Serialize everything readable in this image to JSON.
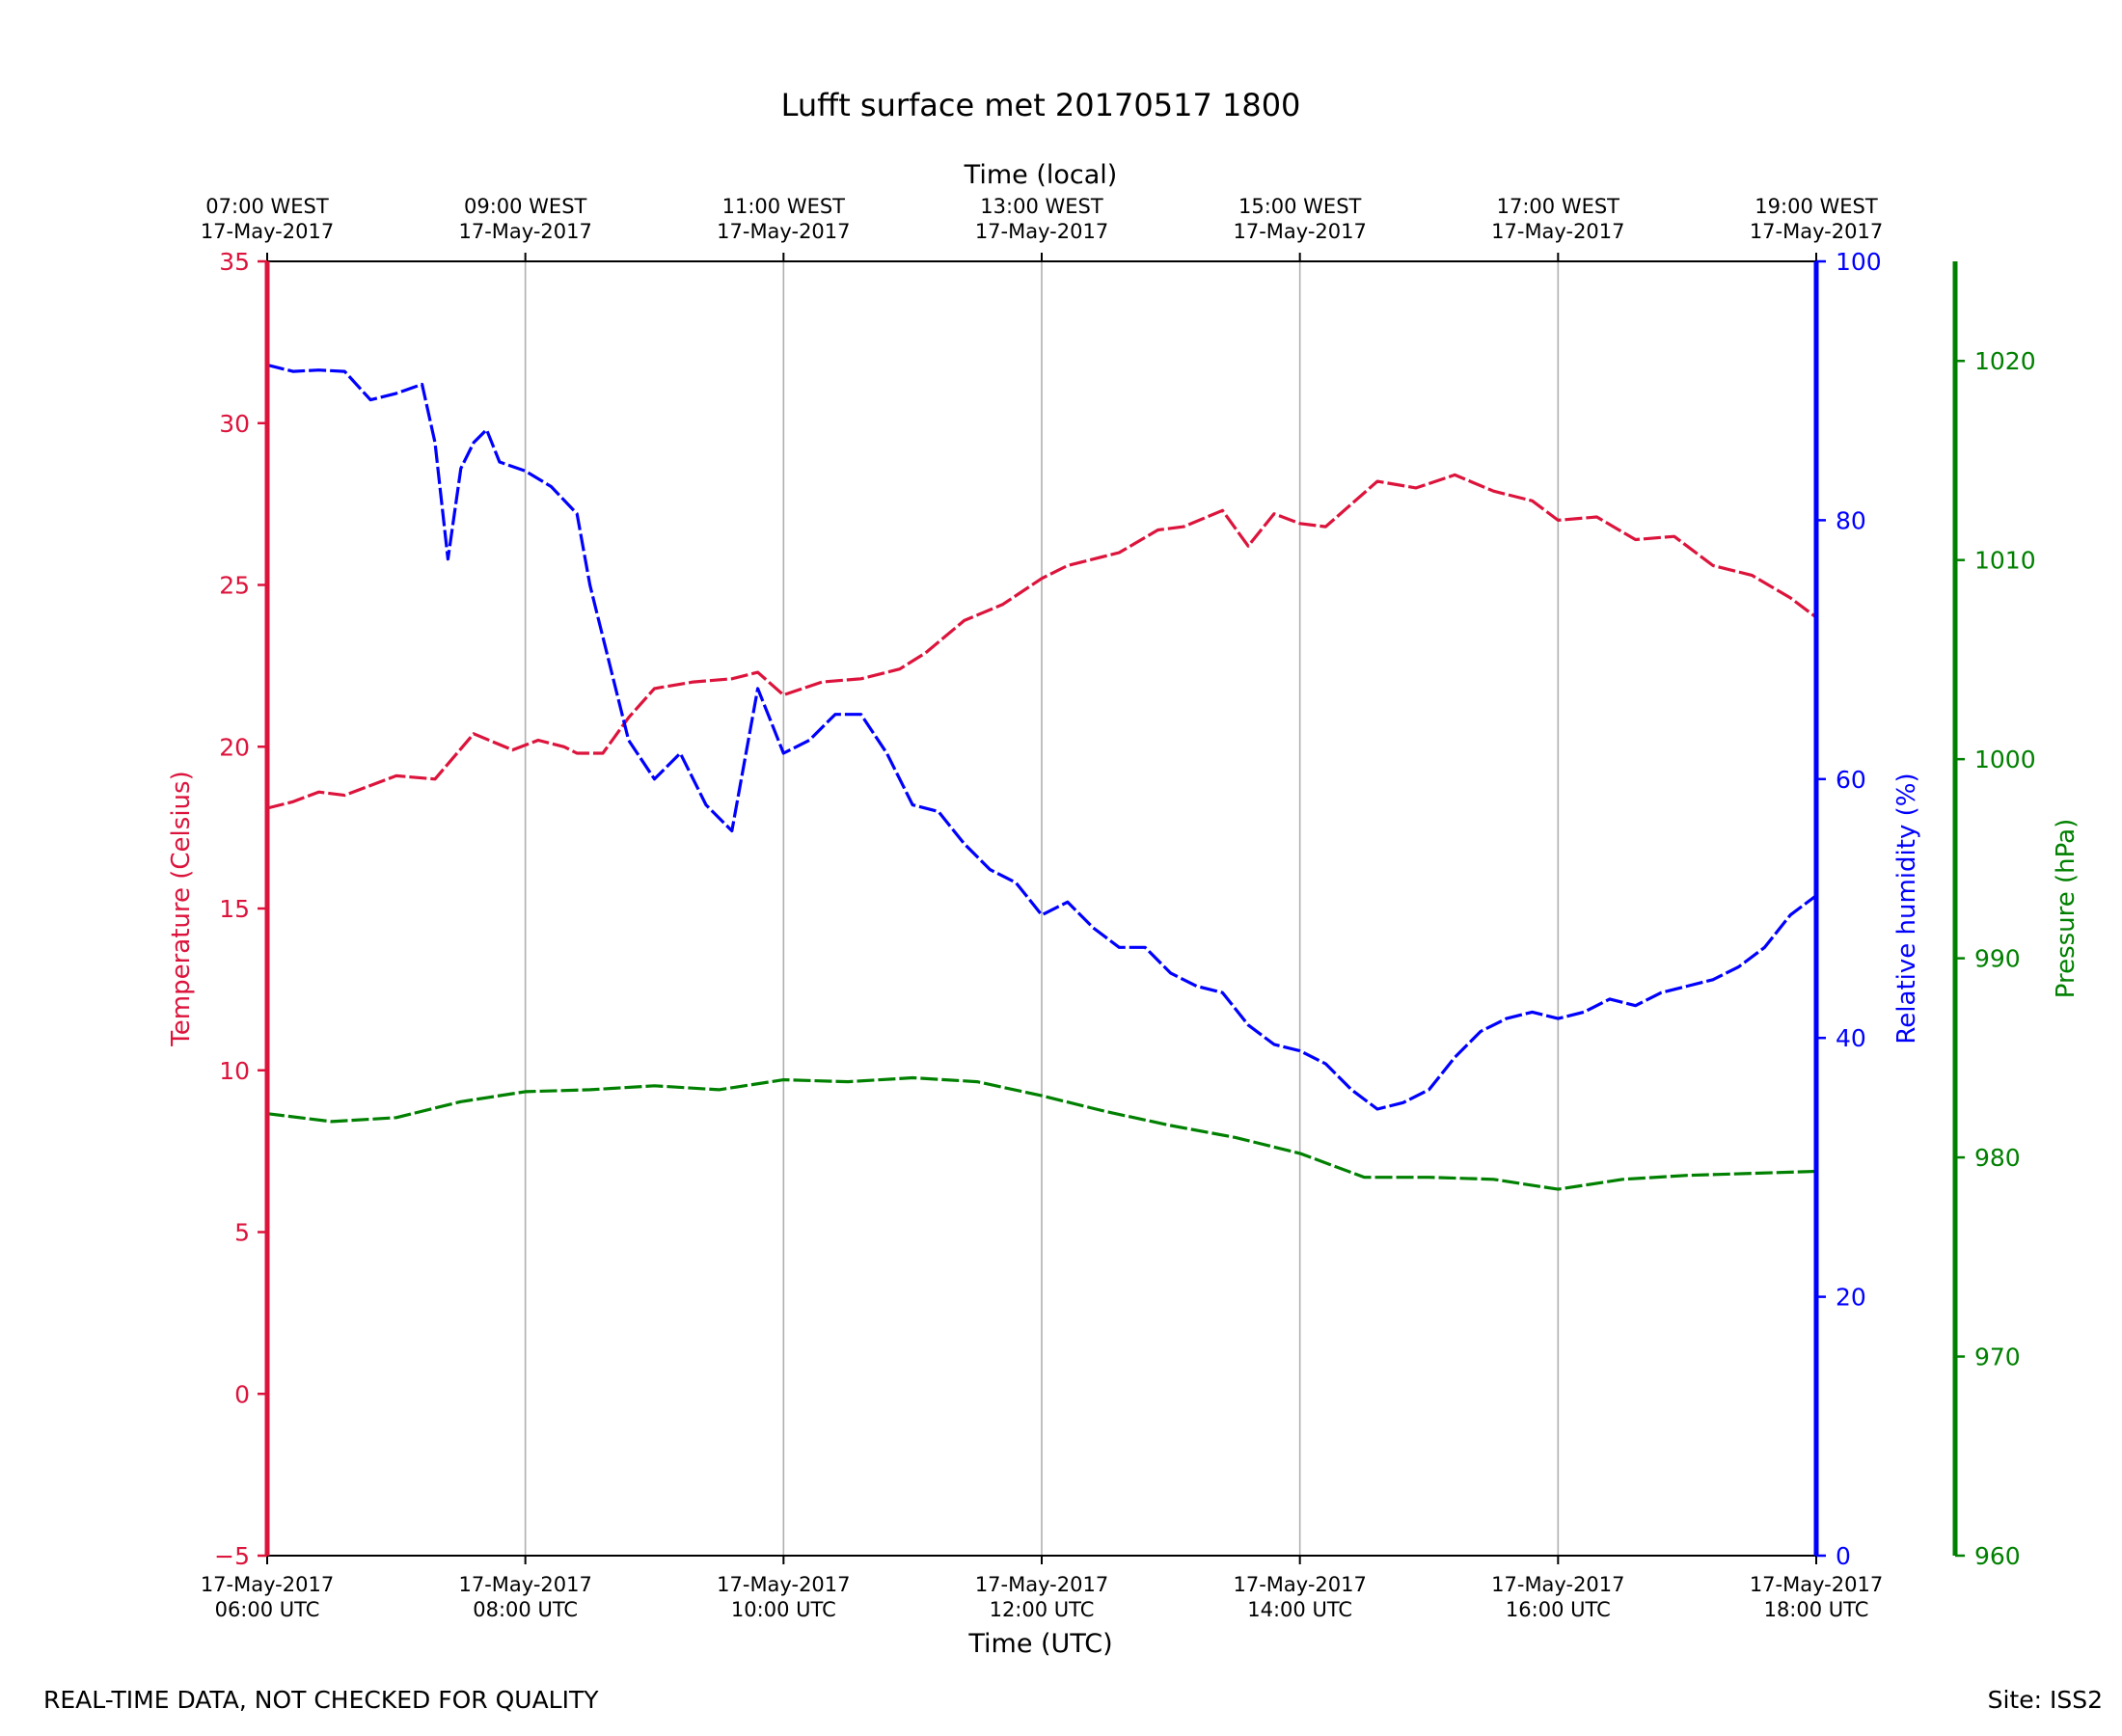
{
  "chart_data": {
    "type": "line",
    "title": "Lufft surface met 20170517 1800",
    "top_axis_title": "Time (local)",
    "bottom_axis_title": "Time (UTC)",
    "x": {
      "unit": "hours UTC on 17-May-2017",
      "range": [
        6,
        18
      ],
      "gridlines_at": [
        6,
        8,
        10,
        12,
        14,
        16,
        18
      ],
      "ticks_bottom": [
        {
          "date": "17-May-2017",
          "time": "06:00 UTC"
        },
        {
          "date": "17-May-2017",
          "time": "08:00 UTC"
        },
        {
          "date": "17-May-2017",
          "time": "10:00 UTC"
        },
        {
          "date": "17-May-2017",
          "time": "12:00 UTC"
        },
        {
          "date": "17-May-2017",
          "time": "14:00 UTC"
        },
        {
          "date": "17-May-2017",
          "time": "16:00 UTC"
        },
        {
          "date": "17-May-2017",
          "time": "18:00 UTC"
        }
      ],
      "ticks_top": [
        {
          "time": "07:00 WEST",
          "date": "17-May-2017"
        },
        {
          "time": "09:00 WEST",
          "date": "17-May-2017"
        },
        {
          "time": "11:00 WEST",
          "date": "17-May-2017"
        },
        {
          "time": "13:00 WEST",
          "date": "17-May-2017"
        },
        {
          "time": "15:00 WEST",
          "date": "17-May-2017"
        },
        {
          "time": "17:00 WEST",
          "date": "17-May-2017"
        },
        {
          "time": "19:00 WEST",
          "date": "17-May-2017"
        }
      ]
    },
    "axes": {
      "temperature": {
        "label": "Temperature (Celsius)",
        "color": "#dc143c",
        "side": "left",
        "ylim": [
          -5,
          35
        ],
        "ticks": [
          -5,
          0,
          5,
          10,
          15,
          20,
          25,
          30,
          35
        ],
        "tick_labels": [
          "−5",
          "0",
          "5",
          "10",
          "15",
          "20",
          "25",
          "30",
          "35"
        ]
      },
      "humidity": {
        "label": "Relative humidity (%)",
        "color": "#0000ff",
        "side": "right",
        "ylim": [
          0,
          100
        ],
        "ticks": [
          0,
          20,
          40,
          60,
          80,
          100
        ],
        "tick_labels": [
          "0",
          "20",
          "40",
          "60",
          "80",
          "100"
        ]
      },
      "pressure": {
        "label": "Pressure (hPa)",
        "color": "#008000",
        "side": "right-offset",
        "ylim": [
          960,
          1025
        ],
        "ticks": [
          960,
          970,
          980,
          990,
          1000,
          1010,
          1020
        ],
        "tick_labels": [
          "960",
          "970",
          "980",
          "990",
          "1000",
          "1010",
          "1020"
        ]
      }
    },
    "series": [
      {
        "name": "Temperature",
        "axis": "temperature",
        "color": "#dc143c",
        "x": [
          6.0,
          6.2,
          6.4,
          6.6,
          7.0,
          7.3,
          7.6,
          7.9,
          8.1,
          8.3,
          8.4,
          8.6,
          8.8,
          9.0,
          9.3,
          9.6,
          9.8,
          10.0,
          10.3,
          10.6,
          10.9,
          11.1,
          11.4,
          11.7,
          12.0,
          12.2,
          12.6,
          12.9,
          13.1,
          13.4,
          13.6,
          13.8,
          14.0,
          14.2,
          14.6,
          14.9,
          15.2,
          15.5,
          15.8,
          16.0,
          16.3,
          16.6,
          16.9,
          17.2,
          17.5,
          17.8,
          18.0
        ],
        "values": [
          18.1,
          18.3,
          18.6,
          18.5,
          19.1,
          19.0,
          20.4,
          19.9,
          20.2,
          20.0,
          19.8,
          19.8,
          20.9,
          21.8,
          22.0,
          22.1,
          22.3,
          21.6,
          22.0,
          22.1,
          22.4,
          22.9,
          23.9,
          24.4,
          25.2,
          25.6,
          26.0,
          26.7,
          26.8,
          27.3,
          26.2,
          27.2,
          26.9,
          26.8,
          28.2,
          28.0,
          28.4,
          27.9,
          27.6,
          27.0,
          27.1,
          26.4,
          26.5,
          25.6,
          25.3,
          24.6,
          24.0
        ]
      },
      {
        "name": "Relative humidity",
        "axis": "humidity",
        "color": "#0000ff",
        "x": [
          6.0,
          6.2,
          6.4,
          6.6,
          6.8,
          7.0,
          7.2,
          7.3,
          7.4,
          7.5,
          7.6,
          7.7,
          7.8,
          8.0,
          8.2,
          8.4,
          8.5,
          8.7,
          8.8,
          9.0,
          9.2,
          9.4,
          9.6,
          9.8,
          9.9,
          10.0,
          10.2,
          10.4,
          10.6,
          10.8,
          11.0,
          11.2,
          11.4,
          11.6,
          11.8,
          12.0,
          12.2,
          12.4,
          12.6,
          12.8,
          13.0,
          13.2,
          13.4,
          13.6,
          13.8,
          14.0,
          14.2,
          14.4,
          14.6,
          14.8,
          15.0,
          15.2,
          15.4,
          15.6,
          15.8,
          16.0,
          16.2,
          16.4,
          16.6,
          16.8,
          17.0,
          17.2,
          17.4,
          17.6,
          17.8,
          18.0
        ],
        "values": [
          92.0,
          91.5,
          91.6,
          91.5,
          89.3,
          89.8,
          90.5,
          86.0,
          77.0,
          84.0,
          86.0,
          87.0,
          84.5,
          83.8,
          82.6,
          80.5,
          75.0,
          67.0,
          63.0,
          60.0,
          62.0,
          58.0,
          56.0,
          67.0,
          64.5,
          62.0,
          63.0,
          65.0,
          65.0,
          62.0,
          58.0,
          57.5,
          55.0,
          53.0,
          52.0,
          49.5,
          50.5,
          48.5,
          47.0,
          47.0,
          45.0,
          44.0,
          43.5,
          41.0,
          39.5,
          39.0,
          38.0,
          36.0,
          34.5,
          35.0,
          36.0,
          38.5,
          40.5,
          41.5,
          42.0,
          41.5,
          42.0,
          43.0,
          42.5,
          43.5,
          44.0,
          44.5,
          45.5,
          47.0,
          49.5,
          51.0
        ]
      },
      {
        "name": "Pressure",
        "axis": "pressure",
        "color": "#008000",
        "x": [
          6.0,
          6.5,
          7.0,
          7.5,
          8.0,
          8.5,
          9.0,
          9.5,
          10.0,
          10.5,
          11.0,
          11.5,
          12.0,
          12.5,
          13.0,
          13.5,
          14.0,
          14.5,
          15.0,
          15.5,
          16.0,
          16.5,
          17.0,
          17.5,
          18.0
        ],
        "values": [
          982.2,
          981.8,
          982.0,
          982.8,
          983.3,
          983.4,
          983.6,
          983.4,
          983.9,
          983.8,
          984.0,
          983.8,
          983.1,
          982.3,
          981.6,
          981.0,
          980.2,
          979.0,
          979.0,
          978.9,
          978.4,
          978.9,
          979.1,
          979.2,
          979.3
        ]
      }
    ]
  },
  "footer": {
    "left": "REAL-TIME DATA, NOT CHECKED FOR QUALITY",
    "right": "Site: ISS2"
  }
}
